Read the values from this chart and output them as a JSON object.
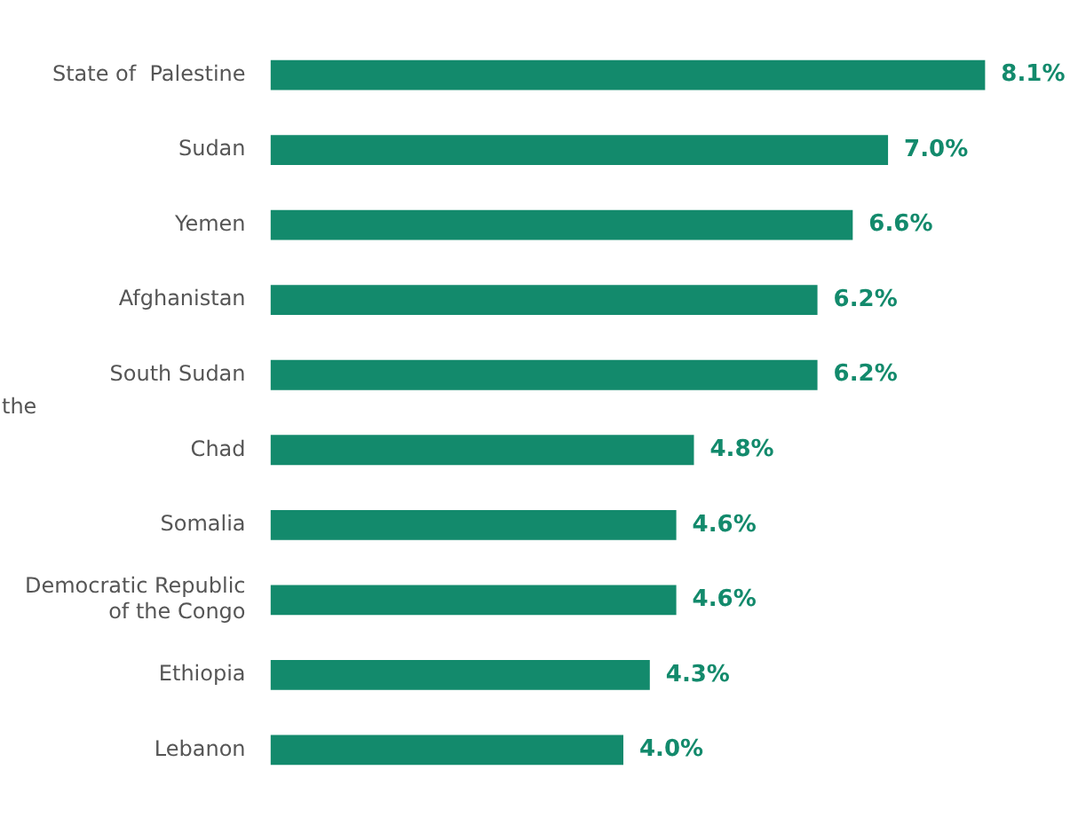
{
  "chart_data": {
    "type": "bar",
    "orientation": "horizontal",
    "categories": [
      "State of  Palestine",
      "Sudan",
      "Yemen",
      "Afghanistan",
      "South Sudan",
      "Chad",
      "Somalia",
      "Democratic Republic of the Congo",
      "Ethiopia",
      "Lebanon"
    ],
    "values": [
      8.1,
      7.0,
      6.6,
      6.2,
      6.2,
      4.8,
      4.6,
      4.6,
      4.3,
      4.0
    ],
    "value_labels": [
      "8.1%",
      "7.0%",
      "6.6%",
      "6.2%",
      "6.2%",
      "4.8%",
      "4.6%",
      "4.6%",
      "4.3%",
      "4.0%"
    ],
    "color": "#138a6c",
    "grid": false,
    "legend": false,
    "annotations": [
      "the"
    ]
  }
}
